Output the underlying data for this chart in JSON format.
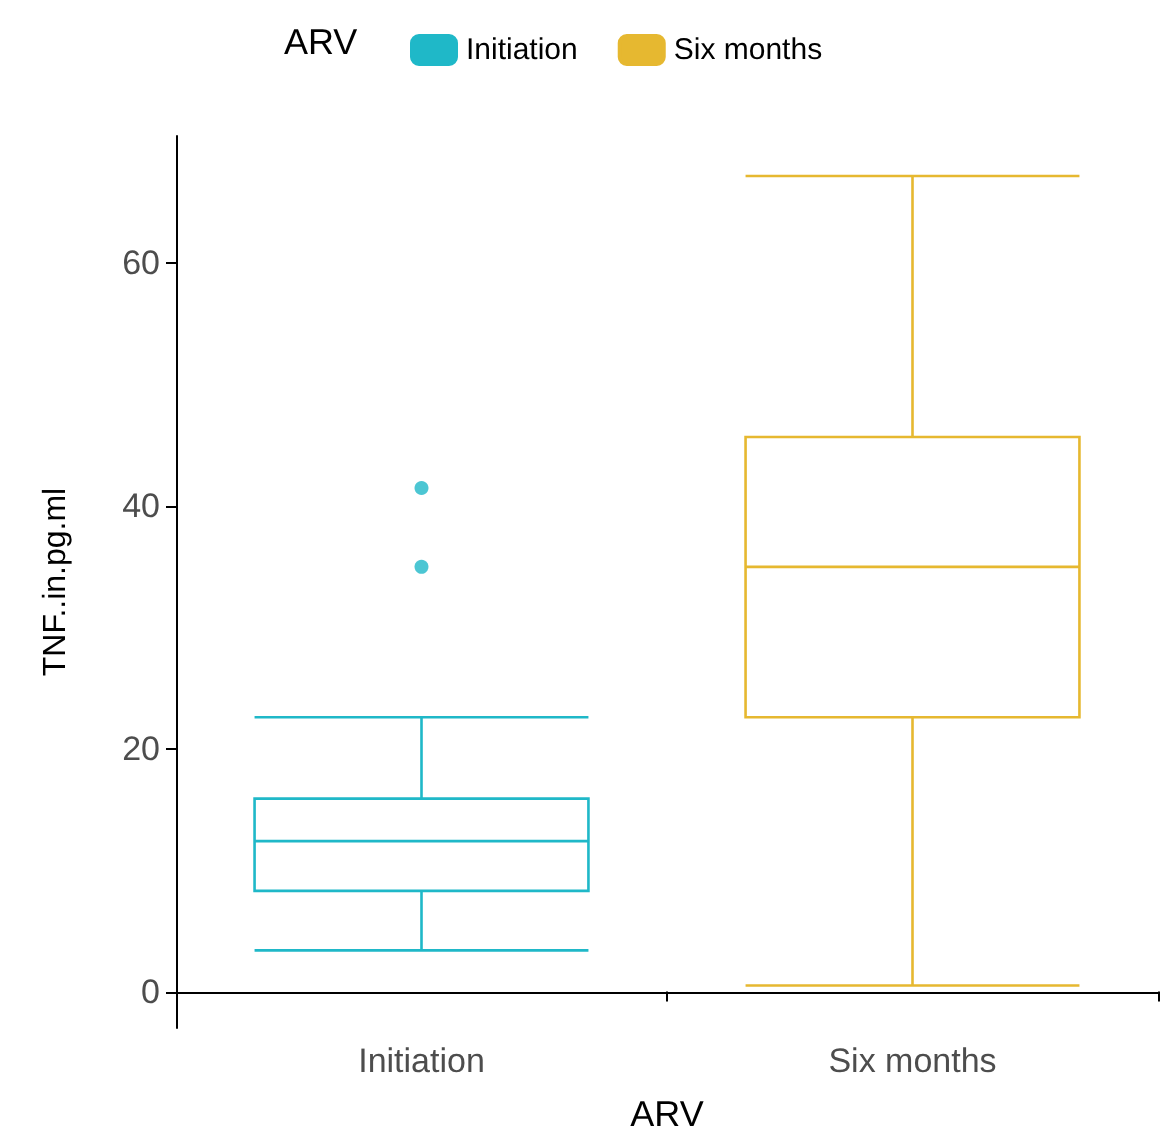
{
  "chart_data": {
    "type": "box",
    "xlabel": "ARV",
    "ylabel": "TNF..in.pg.ml",
    "legend_title": "ARV",
    "legend": "top",
    "categories": [
      "Initiation",
      "Six months"
    ],
    "series": [
      {
        "name": "Initiation",
        "color": "#1fb8c8",
        "boxes": [
          {
            "low": 3.4,
            "q1": 8.3,
            "median": 12.4,
            "q3": 15.9,
            "high": 22.6,
            "outliers": [
              35.0,
              41.5
            ]
          },
          null
        ]
      },
      {
        "name": "Six months",
        "color": "#e6b830",
        "boxes": [
          null,
          {
            "low": 0.5,
            "q1": 22.6,
            "median": 35.0,
            "q3": 45.7,
            "high": 67.2
          }
        ]
      }
    ],
    "ylim": [
      -3,
      70.5
    ],
    "yticks": [
      0,
      20,
      40,
      60
    ],
    "grid": false
  }
}
